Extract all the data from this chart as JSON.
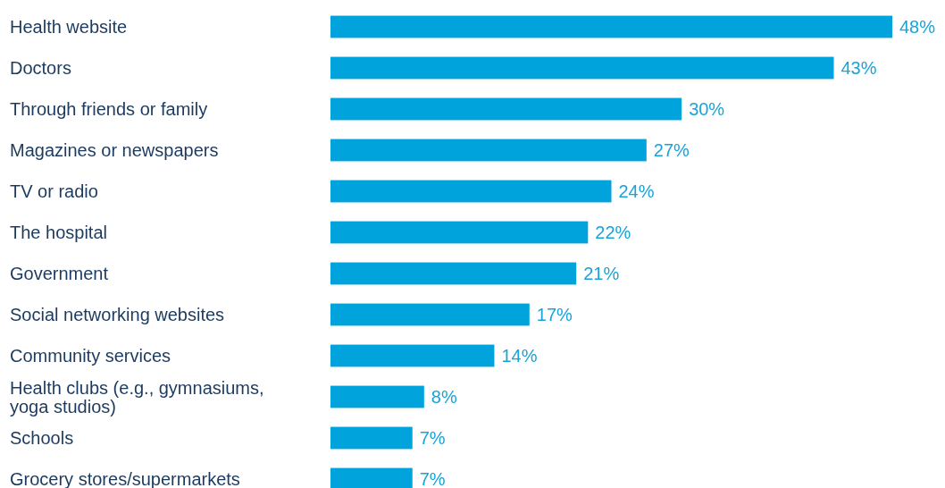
{
  "chart_data": {
    "type": "bar",
    "orientation": "horizontal",
    "categories": [
      "Health website",
      "Doctors",
      "Through friends or family",
      "Magazines or newspapers",
      "TV or radio",
      "The hospital",
      "Government",
      "Social networking websites",
      "Community services",
      "Health clubs (e.g., gymnasiums, yoga studios)",
      "Schools",
      "Grocery stores/supermarkets"
    ],
    "values": [
      48,
      43,
      30,
      27,
      24,
      22,
      21,
      17,
      14,
      8,
      7,
      7
    ],
    "value_labels": [
      "48%",
      "43%",
      "30%",
      "27%",
      "24%",
      "22%",
      "21%",
      "17%",
      "14%",
      "8%",
      "7%",
      "7%"
    ],
    "color": "#00a3dc"
  }
}
